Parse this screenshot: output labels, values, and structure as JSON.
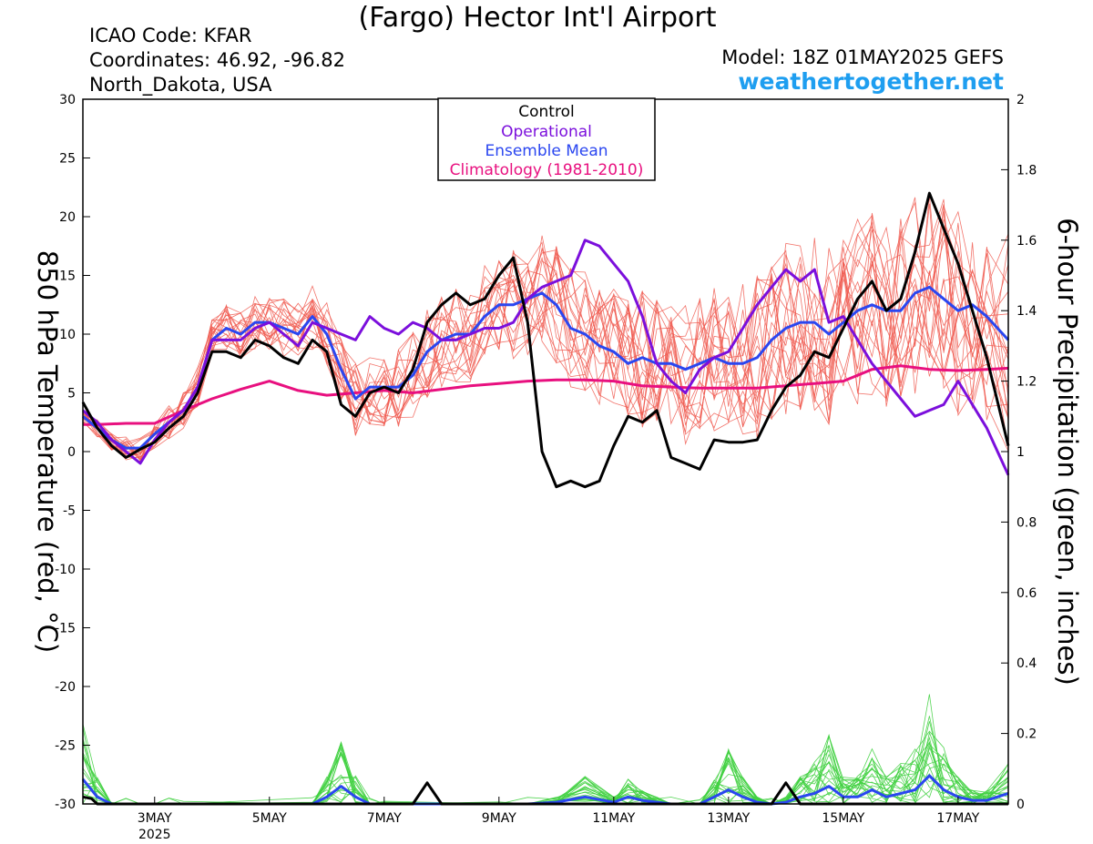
{
  "header": {
    "title": "(Fargo) Hector Int'l Airport",
    "icao": "ICAO Code: KFAR",
    "coordinates": "Coordinates: 46.92, -96.82",
    "region": "North_Dakota, USA",
    "model": "Model: 18Z 01MAY2025 GEFS",
    "site": "weathertogether.net"
  },
  "colors": {
    "control": "#000000",
    "operational": "#7b0fdc",
    "ensemble_mean": "#2a46f0",
    "climatology": "#e8107f",
    "members_temp": "#f05a50",
    "members_precip": "#40d040",
    "site_link": "#1e9ef0"
  },
  "chart_data": {
    "type": "line",
    "xlabel": "",
    "ylabel_left": "850 hPa Temperature (red, °C)",
    "ylabel_right": "6-hour Precipitation (green, inches)",
    "ylim_left": [
      -30,
      30
    ],
    "ylim_right": [
      0,
      2
    ],
    "xlim_days": [
      1.75,
      17.875
    ],
    "x_ticks": [
      {
        "day": 3,
        "label": "3MAY",
        "sub": "2025"
      },
      {
        "day": 5,
        "label": "5MAY",
        "sub": ""
      },
      {
        "day": 7,
        "label": "7MAY",
        "sub": ""
      },
      {
        "day": 9,
        "label": "9MAY",
        "sub": ""
      },
      {
        "day": 11,
        "label": "11MAY",
        "sub": ""
      },
      {
        "day": 13,
        "label": "13MAY",
        "sub": ""
      },
      {
        "day": 15,
        "label": "15MAY",
        "sub": ""
      },
      {
        "day": 17,
        "label": "17MAY",
        "sub": ""
      }
    ],
    "y_ticks_left": [
      "30",
      "25",
      "20",
      "15",
      "10",
      "5",
      "0",
      "-5",
      "-10",
      "-15",
      "-20",
      "-25",
      "-30"
    ],
    "y_ticks_right": [
      "2",
      "1.8",
      "1.6",
      "1.4",
      "1.2",
      "1",
      "0.8",
      "0.6",
      "0.4",
      "0.2",
      "0"
    ],
    "legend": [
      {
        "name": "Control",
        "color_key": "control"
      },
      {
        "name": "Operational",
        "color_key": "operational"
      },
      {
        "name": "Ensemble Mean",
        "color_key": "ensemble_mean"
      },
      {
        "name": "Climatology (1981-2010)",
        "color_key": "climatology"
      }
    ],
    "legend_position": "top-center",
    "series": [
      {
        "name": "Control",
        "axis": "left",
        "width": 3,
        "x": [
          1.75,
          2.0,
          2.25,
          2.5,
          2.75,
          3.0,
          3.25,
          3.5,
          3.75,
          4.0,
          4.25,
          4.5,
          4.75,
          5.0,
          5.25,
          5.5,
          5.75,
          6.0,
          6.25,
          6.5,
          6.75,
          7.0,
          7.25,
          7.5,
          7.75,
          8.0,
          8.25,
          8.5,
          8.75,
          9.0,
          9.25,
          9.5,
          9.75,
          10.0,
          10.25,
          10.5,
          10.75,
          11.0,
          11.25,
          11.5,
          11.75,
          12.0,
          12.25,
          12.5,
          12.75,
          13.0,
          13.25,
          13.5,
          13.75,
          14.0,
          14.25,
          14.5,
          14.75,
          15.0,
          15.25,
          15.5,
          15.75,
          16.0,
          16.25,
          16.5,
          16.75,
          17.0,
          17.25,
          17.5,
          17.875
        ],
        "values": [
          4.2,
          2.0,
          0.5,
          -0.5,
          0.2,
          0.8,
          2.0,
          3.0,
          5.0,
          8.5,
          8.5,
          8.0,
          9.5,
          9.0,
          8.0,
          7.5,
          9.5,
          8.5,
          4.0,
          3.0,
          5.0,
          5.5,
          5.0,
          7.0,
          11.0,
          12.5,
          13.5,
          12.5,
          13.0,
          15.0,
          16.5,
          11.0,
          0.0,
          -3.0,
          -2.5,
          -3.0,
          -2.5,
          0.5,
          3.0,
          2.5,
          3.5,
          -0.5,
          -1.0,
          -1.5,
          1.0,
          0.8,
          0.8,
          1.0,
          3.5,
          5.5,
          6.5,
          8.5,
          8.0,
          10.5,
          13.0,
          14.5,
          12.0,
          13.0,
          17.0,
          22.0,
          19.0,
          16.0,
          12.0,
          8.0,
          0.5
        ]
      },
      {
        "name": "Operational",
        "axis": "left",
        "width": 3,
        "x": [
          1.75,
          2.0,
          2.25,
          2.5,
          2.75,
          3.0,
          3.25,
          3.5,
          3.75,
          4.0,
          4.25,
          4.5,
          4.75,
          5.0,
          5.25,
          5.5,
          5.75,
          6.0,
          6.25,
          6.5,
          6.75,
          7.0,
          7.25,
          7.5,
          7.75,
          8.0,
          8.25,
          8.5,
          8.75,
          9.0,
          9.25,
          9.5,
          9.75,
          10.0,
          10.25,
          10.5,
          10.75,
          11.0,
          11.25,
          11.5,
          11.75,
          12.0,
          12.25,
          12.5,
          12.75,
          13.0,
          13.25,
          13.5,
          13.75,
          14.0,
          14.25,
          14.5,
          14.75,
          15.0,
          15.25,
          15.5,
          15.75,
          16.0,
          16.25,
          16.5,
          16.75,
          17.0,
          17.25,
          17.5,
          17.875
        ],
        "values": [
          3.5,
          2.5,
          1.0,
          0.0,
          -1.0,
          1.0,
          2.5,
          3.5,
          5.5,
          9.5,
          9.5,
          9.5,
          10.5,
          11.0,
          10.0,
          9.0,
          11.0,
          10.5,
          10.0,
          9.5,
          11.5,
          10.5,
          10.0,
          11.0,
          10.5,
          9.5,
          9.5,
          10.0,
          10.5,
          10.5,
          11.0,
          13.0,
          14.0,
          14.5,
          15.0,
          18.0,
          17.5,
          16.0,
          14.5,
          11.5,
          7.5,
          6.0,
          5.0,
          7.0,
          8.0,
          8.5,
          10.5,
          12.5,
          14.0,
          15.5,
          14.5,
          15.5,
          11.0,
          11.5,
          9.5,
          7.5,
          6.0,
          4.5,
          3.0,
          3.5,
          4.0,
          6.0,
          4.0,
          2.0,
          -2.0
        ]
      },
      {
        "name": "Ensemble Mean",
        "axis": "left",
        "width": 3,
        "x": [
          1.75,
          2.0,
          2.25,
          2.5,
          2.75,
          3.0,
          3.25,
          3.5,
          3.75,
          4.0,
          4.25,
          4.5,
          4.75,
          5.0,
          5.25,
          5.5,
          5.75,
          6.0,
          6.25,
          6.5,
          6.75,
          7.0,
          7.25,
          7.5,
          7.75,
          8.0,
          8.25,
          8.5,
          8.75,
          9.0,
          9.25,
          9.5,
          9.75,
          10.0,
          10.25,
          10.5,
          10.75,
          11.0,
          11.25,
          11.5,
          11.75,
          12.0,
          12.25,
          12.5,
          12.75,
          13.0,
          13.25,
          13.5,
          13.75,
          14.0,
          14.25,
          14.5,
          14.75,
          15.0,
          15.25,
          15.5,
          15.75,
          16.0,
          16.25,
          16.5,
          16.75,
          17.0,
          17.25,
          17.5,
          17.875
        ],
        "values": [
          3.0,
          2.0,
          1.0,
          0.3,
          0.3,
          1.5,
          2.5,
          3.5,
          5.5,
          9.5,
          10.5,
          10.0,
          11.0,
          11.0,
          10.5,
          10.0,
          11.5,
          10.0,
          7.0,
          4.5,
          5.5,
          5.5,
          5.5,
          6.5,
          8.5,
          9.5,
          10.0,
          10.0,
          11.5,
          12.5,
          12.5,
          13.0,
          13.5,
          12.5,
          10.5,
          10.0,
          9.0,
          8.5,
          7.5,
          8.0,
          7.5,
          7.5,
          7.0,
          7.5,
          8.0,
          7.5,
          7.5,
          8.0,
          9.5,
          10.5,
          11.0,
          11.0,
          10.0,
          11.0,
          12.0,
          12.5,
          12.0,
          12.0,
          13.5,
          14.0,
          13.0,
          12.0,
          12.5,
          11.5,
          9.5
        ]
      },
      {
        "name": "Climatology (1981-2010)",
        "axis": "left",
        "width": 3,
        "x": [
          1.75,
          2.0,
          2.5,
          3.0,
          3.5,
          4.0,
          4.5,
          5.0,
          5.5,
          6.0,
          6.5,
          7.0,
          7.5,
          8.0,
          8.5,
          9.0,
          9.5,
          10.0,
          10.5,
          11.0,
          11.5,
          12.0,
          12.5,
          13.0,
          13.5,
          14.0,
          14.5,
          15.0,
          15.5,
          16.0,
          16.5,
          17.0,
          17.5,
          17.875
        ],
        "values": [
          2.3,
          2.3,
          2.4,
          2.4,
          3.5,
          4.5,
          5.3,
          6.0,
          5.2,
          4.8,
          5.0,
          5.2,
          5.0,
          5.3,
          5.6,
          5.8,
          6.0,
          6.1,
          6.1,
          6.0,
          5.6,
          5.5,
          5.4,
          5.4,
          5.4,
          5.6,
          5.8,
          6.0,
          7.0,
          7.3,
          7.0,
          6.9,
          7.0,
          7.1
        ]
      },
      {
        "name": "Control",
        "axis": "right",
        "width": 3,
        "precip": true,
        "x": [
          1.75,
          1.9,
          2.0,
          2.25,
          2.5,
          7.5,
          7.75,
          8.0,
          8.5,
          13.75,
          14.0,
          14.25,
          17.875
        ],
        "values": [
          0.02,
          0.015,
          0.0,
          0.0,
          0.0,
          0.0,
          0.06,
          0.0,
          0.0,
          0.0,
          0.06,
          0.0,
          0.0
        ]
      },
      {
        "name": "Ensemble Mean",
        "axis": "right",
        "width": 3,
        "precip": true,
        "x": [
          1.75,
          2.0,
          2.25,
          2.5,
          2.75,
          3.0,
          3.25,
          3.5,
          5.75,
          6.0,
          6.25,
          6.5,
          6.75,
          7.0,
          9.0,
          9.5,
          10.0,
          10.5,
          11.0,
          11.25,
          11.5,
          11.75,
          12.0,
          12.5,
          12.75,
          13.0,
          13.25,
          13.5,
          13.75,
          14.0,
          14.25,
          14.5,
          14.75,
          15.0,
          15.25,
          15.5,
          15.75,
          16.0,
          16.25,
          16.5,
          16.75,
          17.0,
          17.25,
          17.5,
          17.875
        ],
        "values": [
          0.07,
          0.02,
          0.0,
          0.0,
          0.0,
          0.0,
          0.0,
          0.0,
          0.0,
          0.02,
          0.05,
          0.02,
          0.0,
          0.0,
          0.0,
          0.0,
          0.005,
          0.02,
          0.005,
          0.02,
          0.01,
          0.005,
          0.0,
          0.0,
          0.02,
          0.04,
          0.02,
          0.005,
          0.0,
          0.005,
          0.02,
          0.03,
          0.05,
          0.02,
          0.02,
          0.04,
          0.02,
          0.03,
          0.04,
          0.08,
          0.04,
          0.02,
          0.01,
          0.01,
          0.03
        ]
      }
    ]
  }
}
